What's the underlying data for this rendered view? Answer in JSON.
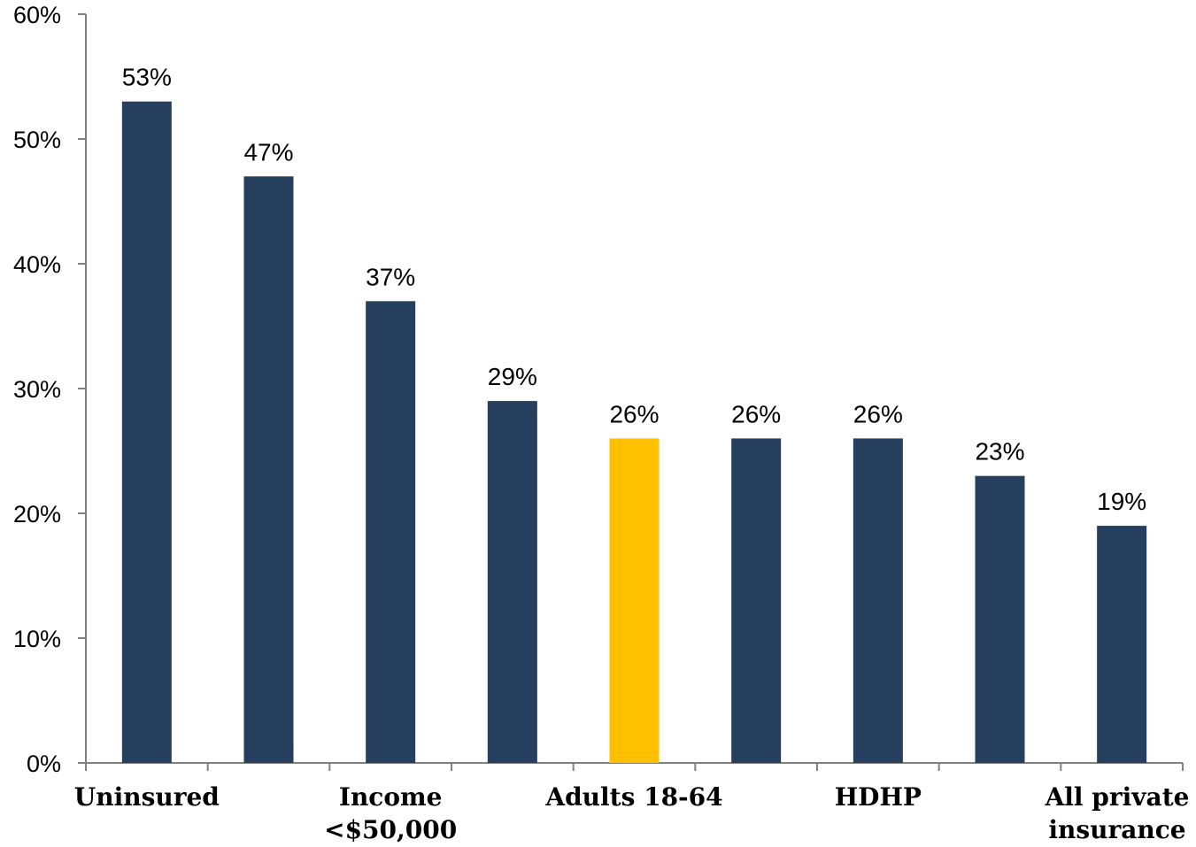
{
  "chart_data": {
    "type": "bar",
    "categories": [
      "Uninsured",
      "",
      "Income <$50,000",
      "",
      "Adults 18-64",
      "",
      "HDHP",
      "",
      "All private insurance"
    ],
    "category_label_lines": [
      [
        "Uninsured"
      ],
      [],
      [
        "Income",
        "<$50,000"
      ],
      [],
      [
        "Adults 18-64"
      ],
      [],
      [
        "HDHP"
      ],
      [],
      [
        "All private",
        "insurance"
      ]
    ],
    "values": [
      53,
      47,
      37,
      29,
      26,
      26,
      26,
      23,
      19
    ],
    "data_labels": [
      "53%",
      "47%",
      "37%",
      "29%",
      "26%",
      "26%",
      "26%",
      "23%",
      "19%"
    ],
    "highlight_index": 4,
    "ylim": [
      0,
      60
    ],
    "yticks": [
      0,
      10,
      20,
      30,
      40,
      50,
      60
    ],
    "ytick_labels": [
      "0%",
      "10%",
      "20%",
      "30%",
      "40%",
      "50%",
      "60%"
    ],
    "title": "",
    "xlabel": "",
    "ylabel": "",
    "grid": false,
    "colors": {
      "bar": "#263f5f",
      "highlight": "#ffc000",
      "axis": "#808080"
    }
  }
}
